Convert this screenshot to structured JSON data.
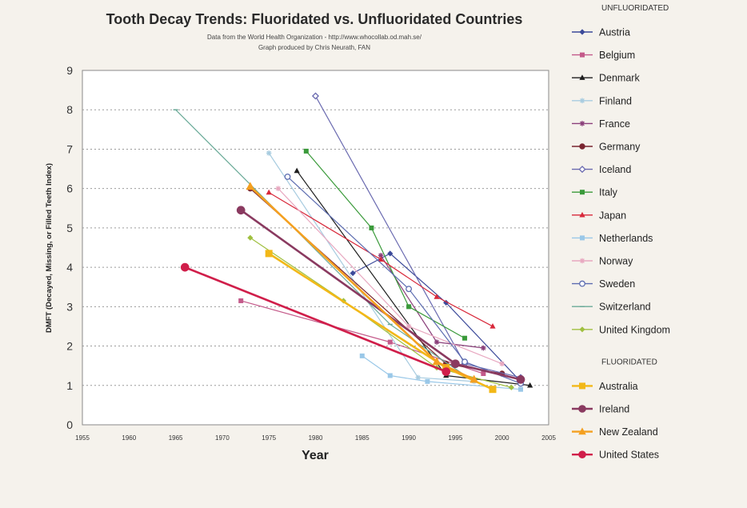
{
  "chart_data": {
    "type": "line",
    "title": "Tooth Decay Trends:  Fluoridated vs. Unfluoridated Countries",
    "subtitle_line1": "Data from the World Health Organization - http://www.whocollab.od.mah.se/",
    "subtitle_line2": "Graph produced by Chris Neurath, FAN",
    "xlabel": "Year",
    "ylabel": "DMFT (Decayed, Missing, or Filled Teeth Index)",
    "xlim": [
      1955,
      2005
    ],
    "ylim": [
      0,
      9
    ],
    "x_ticks": [
      "1955",
      "1960",
      "1965",
      "1970",
      "1975",
      "1980",
      "1985",
      "1990",
      "1995",
      "2000",
      "2005"
    ],
    "y_ticks": [
      "0",
      "1",
      "2",
      "3",
      "4",
      "5",
      "6",
      "7",
      "8",
      "9"
    ],
    "grid": "horizontal dotted",
    "legend_groups": [
      {
        "title": "UNFLUORIDATED",
        "series": [
          {
            "name": "Austria",
            "color": "#3c4a9a",
            "marker": "diamond",
            "points": [
              [
                1984,
                3.85
              ],
              [
                1988,
                4.35
              ],
              [
                1994,
                3.1
              ],
              [
                2002,
                1.1
              ]
            ]
          },
          {
            "name": "Belgium",
            "color": "#c45a8a",
            "marker": "square",
            "points": [
              [
                1972,
                3.15
              ],
              [
                1988,
                2.1
              ],
              [
                1998,
                1.3
              ]
            ]
          },
          {
            "name": "Denmark",
            "color": "#1e1e1e",
            "marker": "triangle",
            "points": [
              [
                1978,
                6.45
              ],
              [
                1994,
                1.25
              ],
              [
                2003,
                1.0
              ]
            ]
          },
          {
            "name": "Finland",
            "color": "#a8cce0",
            "marker": "asterisk",
            "points": [
              [
                1975,
                6.9
              ],
              [
                1991,
                1.2
              ],
              [
                1997,
                1.1
              ]
            ]
          },
          {
            "name": "France",
            "color": "#8a3f7a",
            "marker": "asterisk",
            "points": [
              [
                1987,
                4.3
              ],
              [
                1993,
                2.1
              ],
              [
                1998,
                1.95
              ]
            ]
          },
          {
            "name": "Germany",
            "color": "#7a2530",
            "marker": "circle",
            "points": [
              [
                1973,
                6.0
              ],
              [
                1994,
                1.55
              ],
              [
                2000,
                1.3
              ]
            ]
          },
          {
            "name": "Iceland",
            "color": "#6a6ab0",
            "marker": "diamond-open",
            "points": [
              [
                1980,
                8.35
              ],
              [
                1996,
                1.55
              ],
              [
                2002,
                1.2
              ]
            ]
          },
          {
            "name": "Italy",
            "color": "#3a9a3a",
            "marker": "square",
            "points": [
              [
                1979,
                6.95
              ],
              [
                1986,
                5.0
              ],
              [
                1990,
                3.0
              ],
              [
                1996,
                2.2
              ]
            ]
          },
          {
            "name": "Japan",
            "color": "#d8283a",
            "marker": "triangle",
            "points": [
              [
                1975,
                5.9
              ],
              [
                1987,
                4.2
              ],
              [
                1993,
                3.25
              ],
              [
                1999,
                2.5
              ]
            ]
          },
          {
            "name": "Netherlands",
            "color": "#9ac8e8",
            "marker": "square",
            "points": [
              [
                1985,
                1.75
              ],
              [
                1988,
                1.25
              ],
              [
                1992,
                1.1
              ],
              [
                2002,
                0.9
              ]
            ]
          },
          {
            "name": "Norway",
            "color": "#e8a8c0",
            "marker": "asterisk",
            "points": [
              [
                1976,
                6.0
              ],
              [
                1990,
                2.5
              ],
              [
                2000,
                1.55
              ]
            ]
          },
          {
            "name": "Sweden",
            "color": "#5c6cb0",
            "marker": "circle-open",
            "points": [
              [
                1977,
                6.3
              ],
              [
                1990,
                3.45
              ],
              [
                1996,
                1.6
              ],
              [
                2002,
                1.05
              ]
            ]
          },
          {
            "name": "Switzerland",
            "color": "#6aaa98",
            "marker": "dash",
            "points": [
              [
                1965,
                8.0
              ],
              [
                1988,
                2.55
              ],
              [
                1997,
                1.1
              ]
            ]
          },
          {
            "name": "United Kingdom",
            "color": "#a0c040",
            "marker": "diamond",
            "points": [
              [
                1973,
                4.75
              ],
              [
                1983,
                3.15
              ],
              [
                1993,
                1.45
              ],
              [
                2001,
                0.95
              ]
            ]
          }
        ]
      },
      {
        "title": "FLUORIDATED",
        "series": [
          {
            "name": "Australia",
            "color": "#f2b818",
            "marker": "square",
            "points": [
              [
                1975,
                4.35
              ],
              [
                1994,
                1.45
              ],
              [
                1999,
                0.9
              ]
            ]
          },
          {
            "name": "Ireland",
            "color": "#8a3a60",
            "marker": "circle",
            "points": [
              [
                1972,
                5.45
              ],
              [
                1995,
                1.55
              ],
              [
                2002,
                1.15
              ]
            ]
          },
          {
            "name": "New Zealand",
            "color": "#f4a020",
            "marker": "triangle",
            "points": [
              [
                1973,
                6.05
              ],
              [
                1993,
                1.6
              ],
              [
                1997,
                1.15
              ]
            ]
          },
          {
            "name": "United States",
            "color": "#d01e4a",
            "marker": "circle",
            "points": [
              [
                1966,
                4.0
              ],
              [
                1994,
                1.35
              ]
            ]
          }
        ]
      }
    ]
  }
}
